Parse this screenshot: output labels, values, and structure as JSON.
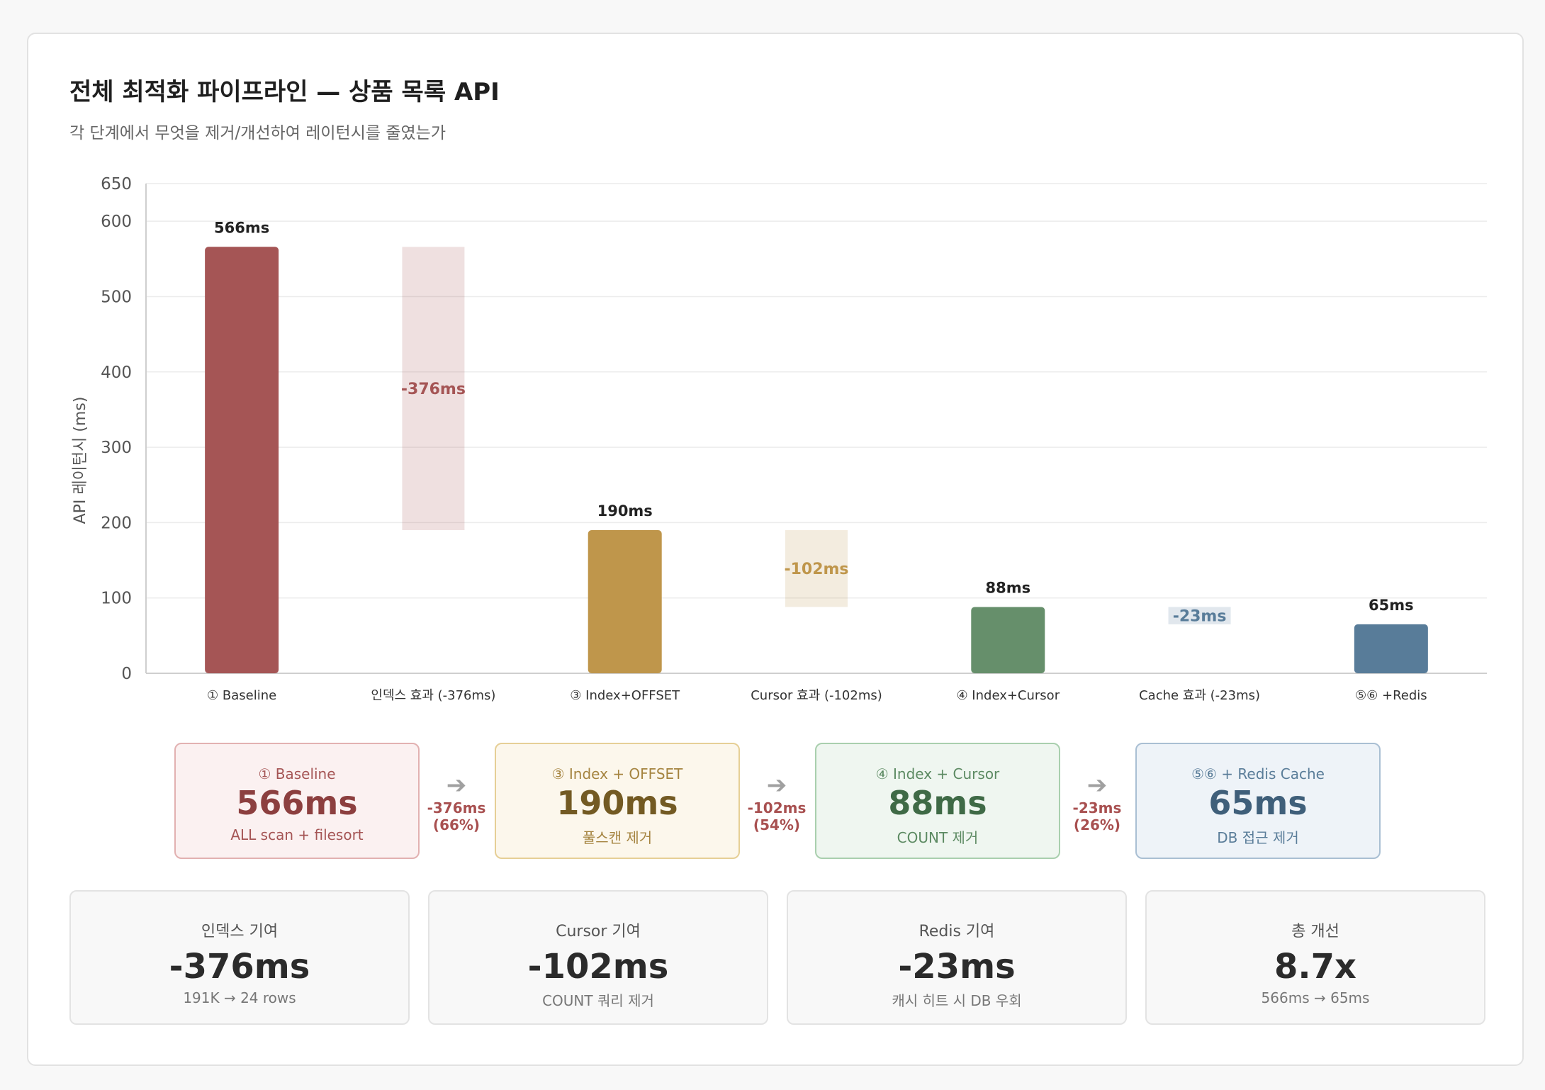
{
  "header": {
    "title": "전체 최적화 파이프라인 — 상품 목록 API",
    "subtitle": "각 단계에서 무엇을 제거/개선하여 레이턴시를 줄였는가"
  },
  "colors": {
    "baseline": "#a55555",
    "offset": "#bf964b",
    "cursor": "#668f6b",
    "redis": "#587c99"
  },
  "chart_data": {
    "type": "bar",
    "subtype": "waterfall",
    "ylabel": "API 레이턴시 (ms)",
    "xlabel": "",
    "ylim": [
      0,
      650
    ],
    "yticks": [
      0,
      100,
      200,
      300,
      400,
      500,
      600,
      650
    ],
    "grid": true,
    "categories": [
      "① Baseline",
      "인덱스 효과 (-376ms)",
      "③ Index+OFFSET",
      "Cursor 효과 (-102ms)",
      "④ Index+Cursor",
      "Cache 효과 (-23ms)",
      "⑤⑥ +Redis"
    ],
    "bars": [
      {
        "kind": "total",
        "value": 566,
        "label": "566ms",
        "color": "#a55555"
      },
      {
        "kind": "delta",
        "from": 566,
        "to": 190,
        "label": "-376ms",
        "color": "#a55555"
      },
      {
        "kind": "total",
        "value": 190,
        "label": "190ms",
        "color": "#bf964b"
      },
      {
        "kind": "delta",
        "from": 190,
        "to": 88,
        "label": "-102ms",
        "color": "#bf964b"
      },
      {
        "kind": "total",
        "value": 88,
        "label": "88ms",
        "color": "#668f6b"
      },
      {
        "kind": "delta",
        "from": 88,
        "to": 65,
        "label": "-23ms",
        "color": "#587c99"
      },
      {
        "kind": "total",
        "value": 65,
        "label": "65ms",
        "color": "#587c99"
      }
    ]
  },
  "flow": {
    "stages": [
      {
        "label": "① Baseline",
        "value": "566ms",
        "desc": "ALL scan + filesort"
      },
      {
        "label": "③ Index + OFFSET",
        "value": "190ms",
        "desc": "풀스캔 제거"
      },
      {
        "label": "④ Index + Cursor",
        "value": "88ms",
        "desc": "COUNT 제거"
      },
      {
        "label": "⑤⑥ + Redis Cache",
        "value": "65ms",
        "desc": "DB 접근 제거"
      }
    ],
    "arrows": [
      {
        "icon": "➔",
        "delta": "-376ms",
        "pct": "(66%)"
      },
      {
        "icon": "➔",
        "delta": "-102ms",
        "pct": "(54%)"
      },
      {
        "icon": "➔",
        "delta": "-23ms",
        "pct": "(26%)"
      }
    ]
  },
  "stats": [
    {
      "label": "인덱스 기여",
      "value": "-376ms",
      "desc": "191K → 24 rows"
    },
    {
      "label": "Cursor 기여",
      "value": "-102ms",
      "desc": "COUNT 쿼리 제거"
    },
    {
      "label": "Redis 기여",
      "value": "-23ms",
      "desc": "캐시 히트 시 DB 우회"
    },
    {
      "label": "총 개선",
      "value": "8.7x",
      "desc": "566ms → 65ms"
    }
  ]
}
